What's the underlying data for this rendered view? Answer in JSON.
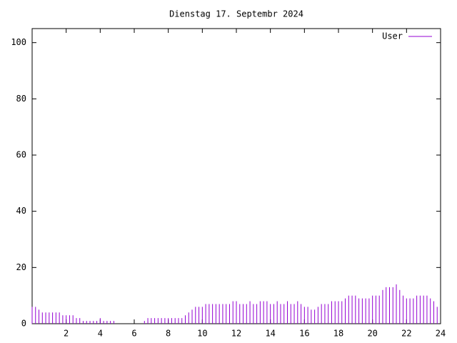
{
  "chart_data": {
    "type": "impulse",
    "title": "Dienstag 17. Septembr 2024",
    "x": [
      0,
      0.2,
      0.4,
      0.6,
      0.8,
      1,
      1.2,
      1.4,
      1.6,
      1.8,
      2,
      2.2,
      2.4,
      2.6,
      2.8,
      3,
      3.2,
      3.4,
      3.6,
      3.8,
      4,
      4.2,
      4.4,
      4.6,
      4.8,
      5,
      5.2,
      5.4,
      5.6,
      5.8,
      6,
      6.2,
      6.4,
      6.6,
      6.8,
      7,
      7.2,
      7.4,
      7.6,
      7.8,
      8,
      8.2,
      8.4,
      8.6,
      8.8,
      9,
      9.2,
      9.4,
      9.6,
      9.8,
      10,
      10.2,
      10.4,
      10.6,
      10.8,
      11,
      11.2,
      11.4,
      11.6,
      11.8,
      12,
      12.2,
      12.4,
      12.6,
      12.8,
      13,
      13.2,
      13.4,
      13.6,
      13.8,
      14,
      14.2,
      14.4,
      14.6,
      14.8,
      15,
      15.2,
      15.4,
      15.6,
      15.8,
      16,
      16.2,
      16.4,
      16.6,
      16.8,
      17,
      17.2,
      17.4,
      17.6,
      17.8,
      18,
      18.2,
      18.4,
      18.6,
      18.8,
      19,
      19.2,
      19.4,
      19.6,
      19.8,
      20,
      20.2,
      20.4,
      20.6,
      20.8,
      21,
      21.2,
      21.4,
      21.6,
      21.8,
      22,
      22.2,
      22.4,
      22.6,
      22.8,
      23,
      23.2,
      23.4,
      23.6,
      23.8
    ],
    "series": [
      {
        "name": "User",
        "color": "#9400d3",
        "values": [
          6,
          6,
          5,
          4,
          4,
          4,
          4,
          4,
          4,
          3,
          3,
          3,
          3,
          2,
          2,
          1,
          1,
          1,
          1,
          1,
          2,
          1,
          1,
          1,
          1,
          0,
          0,
          0,
          0,
          0,
          0,
          0,
          0,
          1,
          2,
          2,
          2,
          2,
          2,
          2,
          2,
          2,
          2,
          2,
          2,
          3,
          4,
          5,
          6,
          6,
          6,
          7,
          7,
          7,
          7,
          7,
          7,
          7,
          7,
          8,
          8,
          7,
          7,
          7,
          8,
          7,
          7,
          8,
          8,
          8,
          7,
          7,
          8,
          7,
          7,
          8,
          7,
          7,
          8,
          7,
          6,
          6,
          5,
          5,
          6,
          7,
          7,
          7,
          8,
          8,
          8,
          8,
          9,
          10,
          10,
          10,
          9,
          9,
          9,
          9,
          10,
          10,
          10,
          12,
          13,
          13,
          13,
          14,
          12,
          10,
          9,
          9,
          9,
          10,
          10,
          10,
          10,
          9,
          8,
          6
        ]
      }
    ],
    "xlim": [
      0,
      24
    ],
    "xticks": [
      2,
      4,
      6,
      8,
      10,
      12,
      14,
      16,
      18,
      20,
      22,
      24
    ],
    "ylim": [
      0,
      105
    ],
    "yticks": [
      0,
      20,
      40,
      60,
      80,
      100
    ],
    "legend": "top-right"
  }
}
